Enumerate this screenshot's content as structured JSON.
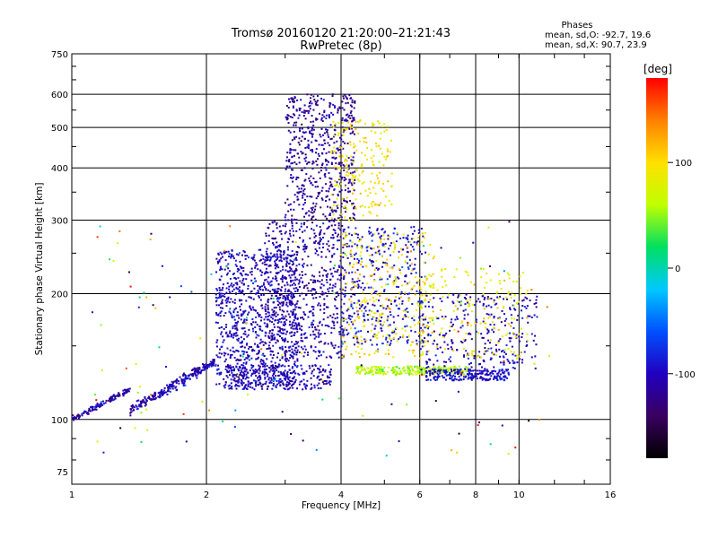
{
  "header": {
    "title_line1": "Tromsø 20160120 21:20:00–21:21:43",
    "title_line2": "RwPretec (8p)"
  },
  "phase_stats": {
    "title": "Phases",
    "line_o": "mean, sd,O: -92.7, 19.6",
    "line_x": "mean, sd,X:  90.7, 23.9"
  },
  "colorbar": {
    "label": "[deg]",
    "ticks": [
      "100",
      "0",
      "-100"
    ],
    "range": [
      -180,
      180
    ],
    "colors": [
      "#000000",
      "#3a0060",
      "#2000c0",
      "#0050ff",
      "#00c8ff",
      "#00e060",
      "#c0ff00",
      "#ffe000",
      "#ff8000",
      "#ff0000"
    ]
  },
  "chart_data": {
    "type": "scatter",
    "xlabel": "Frequency [MHz]",
    "ylabel": "Stationary phase Virtual Height [km]",
    "x_scale": "log",
    "y_scale": "log",
    "xlim": [
      1,
      16
    ],
    "ylim": [
      70,
      750
    ],
    "x_ticks": [
      1,
      2,
      4,
      6,
      8,
      10,
      16
    ],
    "x_tick_labels": [
      "1",
      "2",
      "4",
      "6",
      "8",
      "10",
      "16"
    ],
    "y_ticks": [
      75,
      100,
      200,
      300,
      400,
      500,
      600,
      750
    ],
    "y_tick_labels": [
      "75",
      "100",
      "200",
      "300",
      "400",
      "500",
      "600",
      "750"
    ],
    "grid": true,
    "clusters": [
      {
        "name": "lowband_trace",
        "f": [
          1.0,
          1.35
        ],
        "h": [
          100,
          118
        ],
        "n": 130,
        "phase": -110,
        "trend": 1
      },
      {
        "name": "O_lower_trace",
        "f": [
          1.35,
          2.1
        ],
        "h": [
          105,
          138
        ],
        "n": 260,
        "phase": -105,
        "trend": 1
      },
      {
        "name": "O_mid_cloud",
        "f": [
          2.1,
          3.2
        ],
        "h": [
          120,
          255
        ],
        "n": 900,
        "phase": -100
      },
      {
        "name": "O_bottom_band",
        "f": [
          2.2,
          3.8
        ],
        "h": [
          118,
          135
        ],
        "n": 300,
        "phase": -105
      },
      {
        "name": "O_upper_cloud",
        "f": [
          2.7,
          4.1
        ],
        "h": [
          140,
          300
        ],
        "n": 650,
        "phase": -110
      },
      {
        "name": "O_high_layer",
        "f": [
          3.0,
          4.3
        ],
        "h": [
          300,
          600
        ],
        "n": 560,
        "phase": -115
      },
      {
        "name": "X_high_layer",
        "f": [
          3.8,
          5.2
        ],
        "h": [
          300,
          520
        ],
        "n": 200,
        "phase": 95
      },
      {
        "name": "O_F_cloud",
        "f": [
          4.0,
          6.2
        ],
        "h": [
          150,
          290
        ],
        "n": 380,
        "phase": -90
      },
      {
        "name": "X_F_cloud",
        "f": [
          4.0,
          6.5
        ],
        "h": [
          140,
          280
        ],
        "n": 300,
        "phase": 100
      },
      {
        "name": "X_flat_band",
        "f": [
          4.3,
          7.8
        ],
        "h": [
          128,
          134
        ],
        "n": 260,
        "phase": 60
      },
      {
        "name": "O_flat_band",
        "f": [
          6.2,
          9.5
        ],
        "h": [
          124,
          132
        ],
        "n": 220,
        "phase": -95
      },
      {
        "name": "O_right_cloud",
        "f": [
          6.0,
          11.0
        ],
        "h": [
          130,
          200
        ],
        "n": 300,
        "phase": -100
      },
      {
        "name": "X_right_cloud",
        "f": [
          6.0,
          10.5
        ],
        "h": [
          140,
          230
        ],
        "n": 160,
        "phase": 90
      },
      {
        "name": "scatter_noise",
        "f": [
          1.1,
          12.0
        ],
        "h": [
          80,
          300
        ],
        "n": 140,
        "phase": 0
      }
    ]
  }
}
